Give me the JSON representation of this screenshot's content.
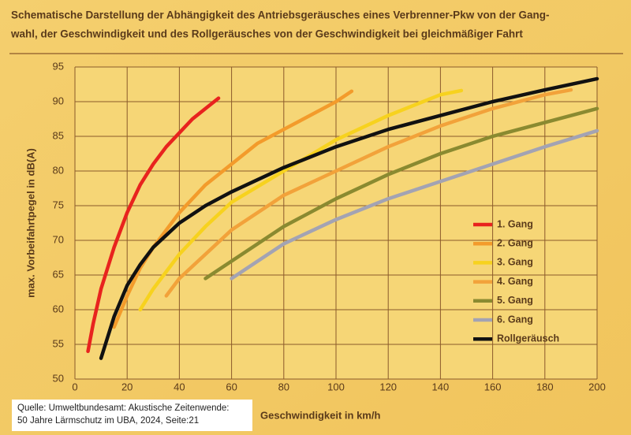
{
  "chart_data": {
    "type": "line",
    "title": [
      "Schematische Darstellung der Abhängigkeit des Antriebsgeräusches eines Verbrenner-Pkw von der Gang-",
      "wahl, der Geschwindigkeit und des Rollgeräusches von der Geschwindigkeit bei gleichmäßiger Fahrt"
    ],
    "x_label": "Geschwindigkeit in km/h",
    "y_label": "max. Vorbeifahrtpegel in dB(A)",
    "xlim": [
      0,
      200
    ],
    "ylim": [
      50,
      95
    ],
    "xticks": [
      0,
      20,
      40,
      60,
      80,
      100,
      120,
      140,
      160,
      180,
      200
    ],
    "yticks": [
      50,
      55,
      60,
      65,
      70,
      75,
      80,
      85,
      90,
      95
    ],
    "grid": true,
    "legend": "right",
    "series": [
      {
        "name": "1. Gang",
        "color": "#e8231e",
        "x": [
          5,
          7,
          10,
          15,
          20,
          25,
          30,
          35,
          40,
          45,
          50,
          55
        ],
        "values": [
          54,
          58,
          63,
          69,
          74,
          78,
          81,
          83.5,
          85.5,
          87.5,
          89,
          90.5
        ]
      },
      {
        "name": "2. Gang",
        "color": "#f39b2b",
        "x": [
          15,
          20,
          25,
          30,
          40,
          50,
          60,
          70,
          80,
          90,
          100,
          106
        ],
        "values": [
          57.5,
          62,
          66,
          69,
          74,
          78,
          81,
          84,
          86,
          88,
          90,
          91.5
        ]
      },
      {
        "name": "3. Gang",
        "color": "#f7d21e",
        "x": [
          25,
          30,
          40,
          50,
          60,
          80,
          100,
          120,
          140,
          148
        ],
        "values": [
          60,
          63,
          68,
          72,
          75.5,
          80,
          84.5,
          88,
          91,
          91.6
        ]
      },
      {
        "name": "4. Gang",
        "color": "#f2a23a",
        "x": [
          35,
          40,
          50,
          60,
          80,
          100,
          120,
          140,
          160,
          180,
          190
        ],
        "values": [
          62,
          64.5,
          68,
          71.5,
          76.5,
          80,
          83.5,
          86.5,
          89,
          91,
          91.7
        ]
      },
      {
        "name": "5. Gang",
        "color": "#8a8a30",
        "x": [
          50,
          60,
          80,
          100,
          120,
          140,
          160,
          180,
          200
        ],
        "values": [
          64.5,
          67,
          72,
          76,
          79.5,
          82.5,
          85,
          87,
          89
        ]
      },
      {
        "name": "6. Gang",
        "color": "#a3a3b3",
        "x": [
          60,
          70,
          80,
          100,
          120,
          140,
          160,
          180,
          200
        ],
        "values": [
          64.5,
          67,
          69.5,
          73,
          76,
          78.5,
          81,
          83.5,
          85.8
        ]
      },
      {
        "name": "Rollgeräusch",
        "color": "#111111",
        "x": [
          10,
          15,
          20,
          25,
          30,
          40,
          50,
          60,
          80,
          100,
          120,
          140,
          160,
          180,
          200
        ],
        "values": [
          53,
          59,
          63.5,
          66.5,
          69,
          72.5,
          75,
          77,
          80.5,
          83.5,
          86,
          88,
          90,
          91.7,
          93.3
        ]
      }
    ],
    "source": [
      "Quelle: Umweltbundesamt: Akustische Zeitenwende:",
      "50 Jahre Lärmschutz im UBA, 2024, Seite:21"
    ]
  }
}
